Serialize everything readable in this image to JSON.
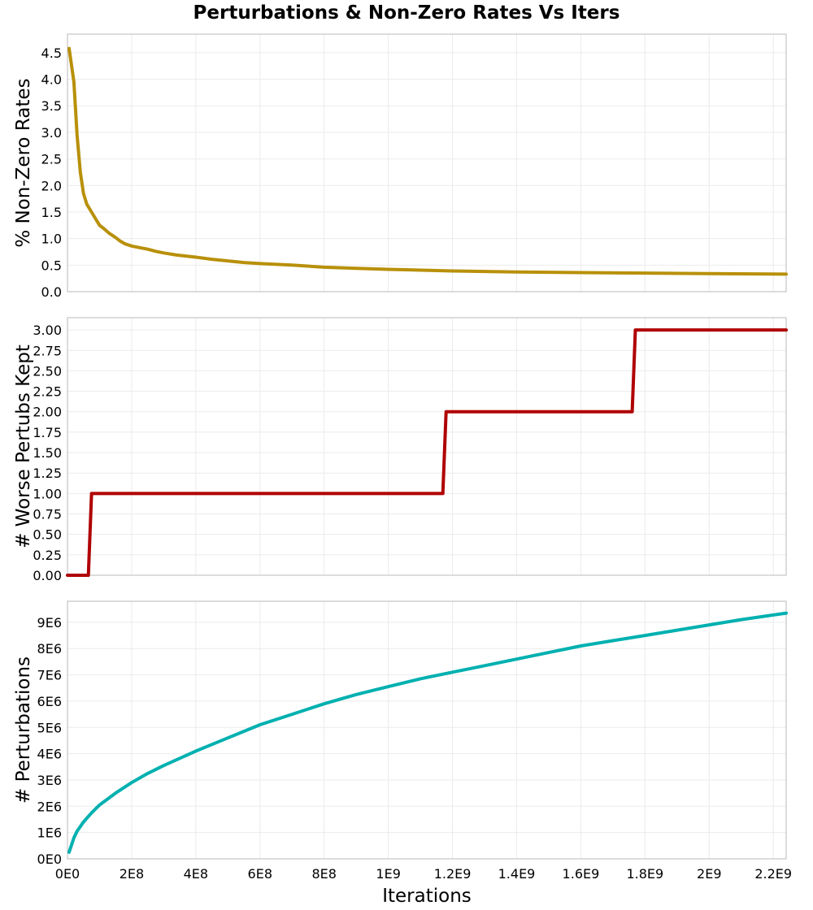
{
  "chart_data": {
    "type": "line",
    "title": "Perturbations & Non-Zero Rates Vs Iters",
    "xlabel": "Iterations",
    "xlim": [
      0,
      2240000000
    ],
    "x_ticks": [
      {
        "value": 0,
        "label": "0E0"
      },
      {
        "value": 200000000,
        "label": "2E8"
      },
      {
        "value": 400000000,
        "label": "4E8"
      },
      {
        "value": 600000000,
        "label": "6E8"
      },
      {
        "value": 800000000,
        "label": "8E8"
      },
      {
        "value": 1000000000,
        "label": "1E9"
      },
      {
        "value": 1200000000,
        "label": "1.2E9"
      },
      {
        "value": 1400000000,
        "label": "1.4E9"
      },
      {
        "value": 1600000000,
        "label": "1.6E9"
      },
      {
        "value": 1800000000,
        "label": "1.8E9"
      },
      {
        "value": 2000000000,
        "label": "2E9"
      },
      {
        "value": 2200000000,
        "label": "2.2E9"
      }
    ],
    "grid": true,
    "panels": [
      {
        "ylabel": "% Non-Zero Rates",
        "color": "#b8900a",
        "ylim": [
          0,
          4.85
        ],
        "y_ticks": [
          {
            "value": 0,
            "label": "0.0"
          },
          {
            "value": 0.5,
            "label": "0.5"
          },
          {
            "value": 1.0,
            "label": "1.0"
          },
          {
            "value": 1.5,
            "label": "1.5"
          },
          {
            "value": 2.0,
            "label": "2.0"
          },
          {
            "value": 2.5,
            "label": "2.5"
          },
          {
            "value": 3.0,
            "label": "3.0"
          },
          {
            "value": 3.5,
            "label": "3.5"
          },
          {
            "value": 4.0,
            "label": "4.0"
          },
          {
            "value": 4.5,
            "label": "4.5"
          }
        ],
        "x": [
          5000000,
          20000000,
          30000000,
          40000000,
          50000000,
          60000000,
          75000000,
          90000000,
          100000000,
          115000000,
          130000000,
          150000000,
          165000000,
          180000000,
          200000000,
          225000000,
          250000000,
          275000000,
          300000000,
          340000000,
          400000000,
          450000000,
          500000000,
          550000000,
          600000000,
          700000000,
          800000000,
          900000000,
          1000000000,
          1200000000,
          1400000000,
          1600000000,
          1800000000,
          2000000000,
          2240000000
        ],
        "y": [
          4.58,
          3.95,
          2.95,
          2.25,
          1.85,
          1.65,
          1.5,
          1.35,
          1.25,
          1.18,
          1.1,
          1.02,
          0.95,
          0.9,
          0.86,
          0.83,
          0.8,
          0.76,
          0.73,
          0.69,
          0.65,
          0.61,
          0.58,
          0.55,
          0.53,
          0.5,
          0.46,
          0.44,
          0.42,
          0.39,
          0.37,
          0.36,
          0.35,
          0.34,
          0.33
        ]
      },
      {
        "ylabel": "# Worse Pertubs Kept",
        "color": "#b00000",
        "ylim": [
          0,
          3.15
        ],
        "y_ticks": [
          {
            "value": 0,
            "label": "0.00"
          },
          {
            "value": 0.25,
            "label": "0.25"
          },
          {
            "value": 0.5,
            "label": "0.50"
          },
          {
            "value": 0.75,
            "label": "0.75"
          },
          {
            "value": 1.0,
            "label": "1.00"
          },
          {
            "value": 1.25,
            "label": "1.25"
          },
          {
            "value": 1.5,
            "label": "1.50"
          },
          {
            "value": 1.75,
            "label": "1.75"
          },
          {
            "value": 2.0,
            "label": "2.00"
          },
          {
            "value": 2.25,
            "label": "2.25"
          },
          {
            "value": 2.5,
            "label": "2.50"
          },
          {
            "value": 2.75,
            "label": "2.75"
          },
          {
            "value": 3.0,
            "label": "3.00"
          }
        ],
        "x": [
          0,
          65000000,
          75000000,
          1170000000,
          1180000000,
          1760000000,
          1770000000,
          2240000000
        ],
        "y": [
          0,
          0,
          1,
          1,
          2,
          2,
          3,
          3
        ]
      },
      {
        "ylabel": "# Perturbations",
        "color": "#00b0b0",
        "ylim": [
          0,
          9800000
        ],
        "y_ticks": [
          {
            "value": 0,
            "label": "0E0"
          },
          {
            "value": 1000000,
            "label": "1E6"
          },
          {
            "value": 2000000,
            "label": "2E6"
          },
          {
            "value": 3000000,
            "label": "3E6"
          },
          {
            "value": 4000000,
            "label": "4E6"
          },
          {
            "value": 5000000,
            "label": "5E6"
          },
          {
            "value": 6000000,
            "label": "6E6"
          },
          {
            "value": 7000000,
            "label": "7E6"
          },
          {
            "value": 8000000,
            "label": "8E6"
          },
          {
            "value": 9000000,
            "label": "9E6"
          }
        ],
        "x": [
          5000000,
          20000000,
          30000000,
          50000000,
          75000000,
          100000000,
          150000000,
          200000000,
          250000000,
          300000000,
          400000000,
          500000000,
          600000000,
          700000000,
          800000000,
          900000000,
          1000000000,
          1100000000,
          1200000000,
          1300000000,
          1400000000,
          1500000000,
          1600000000,
          1700000000,
          1800000000,
          1900000000,
          2000000000,
          2100000000,
          2240000000
        ],
        "y": [
          250000,
          800000,
          1050000,
          1400000,
          1750000,
          2050000,
          2500000,
          2900000,
          3250000,
          3550000,
          4100000,
          4600000,
          5100000,
          5500000,
          5900000,
          6250000,
          6550000,
          6850000,
          7100000,
          7350000,
          7600000,
          7850000,
          8100000,
          8300000,
          8500000,
          8700000,
          8900000,
          9100000,
          9350000
        ]
      }
    ]
  }
}
